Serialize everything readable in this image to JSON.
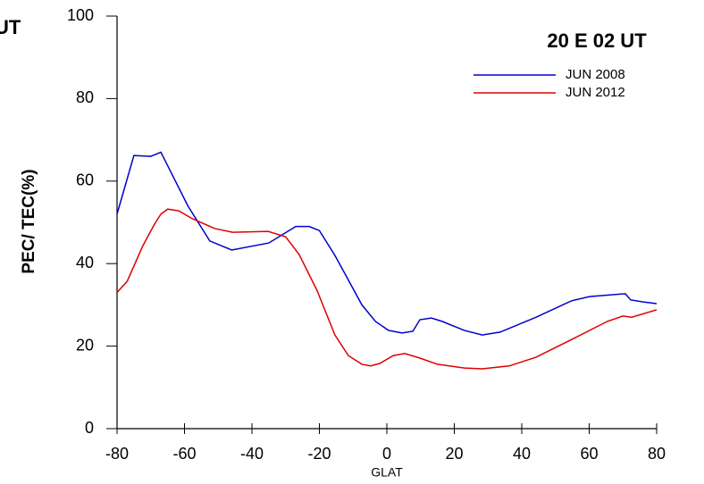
{
  "chart_data": {
    "type": "line",
    "title": "20 E  02 UT",
    "annotations": [
      "UT"
    ],
    "xlabel": "GLAT",
    "ylabel": "PEC/ TEC(%)",
    "xlim": [
      -80,
      80
    ],
    "xticks": [
      -80,
      -60,
      -40,
      -20,
      0,
      20,
      40,
      60,
      80
    ],
    "ylim": [
      0,
      100
    ],
    "yticks": [
      0,
      20,
      40,
      60,
      80,
      100
    ],
    "legend": "upper right",
    "series": [
      {
        "name": "JUN 2008",
        "color": "#0000cc",
        "x": [
          -80,
          -75,
          -70,
          -67,
          -59,
          -52.5,
          -46,
          -35,
          -27,
          -23,
          -20,
          -15.4,
          -7.4,
          -3.4,
          0.5,
          4.5,
          7.7,
          9.8,
          13.2,
          16.4,
          23,
          28.3,
          33.6,
          44.2,
          54.8,
          60.1,
          70.7,
          72.3,
          76,
          80
        ],
        "values": [
          52,
          66.2,
          66,
          67,
          54,
          45.5,
          43.3,
          45,
          49,
          49,
          48,
          42,
          30,
          26,
          23.8,
          23.2,
          23.6,
          26.4,
          26.8,
          26,
          23.8,
          22.7,
          23.4,
          27,
          31,
          32,
          32.7,
          31.2,
          30.7,
          30.3
        ]
      },
      {
        "name": "JUN 2012",
        "color": "#dd0000",
        "x": [
          -80,
          -77,
          -72.3,
          -69,
          -67,
          -65,
          -61.7,
          -57.7,
          -51,
          -45.8,
          -35.2,
          -30,
          -26,
          -20.7,
          -15.4,
          -11.4,
          -7.4,
          -4.8,
          -2.1,
          1.9,
          5.3,
          9.8,
          15,
          23,
          28.3,
          36.3,
          44.2,
          54.8,
          65.4,
          70,
          72.6,
          80
        ],
        "values": [
          33,
          35.7,
          44.4,
          49.4,
          52,
          53.2,
          52.8,
          50.9,
          48.5,
          47.6,
          47.8,
          46.5,
          42.2,
          33.5,
          22.7,
          17.7,
          15.6,
          15.2,
          15.8,
          17.7,
          18.2,
          17.1,
          15.6,
          14.7,
          14.5,
          15.2,
          17.3,
          21.6,
          26,
          27.3,
          27,
          28.8
        ]
      }
    ]
  }
}
